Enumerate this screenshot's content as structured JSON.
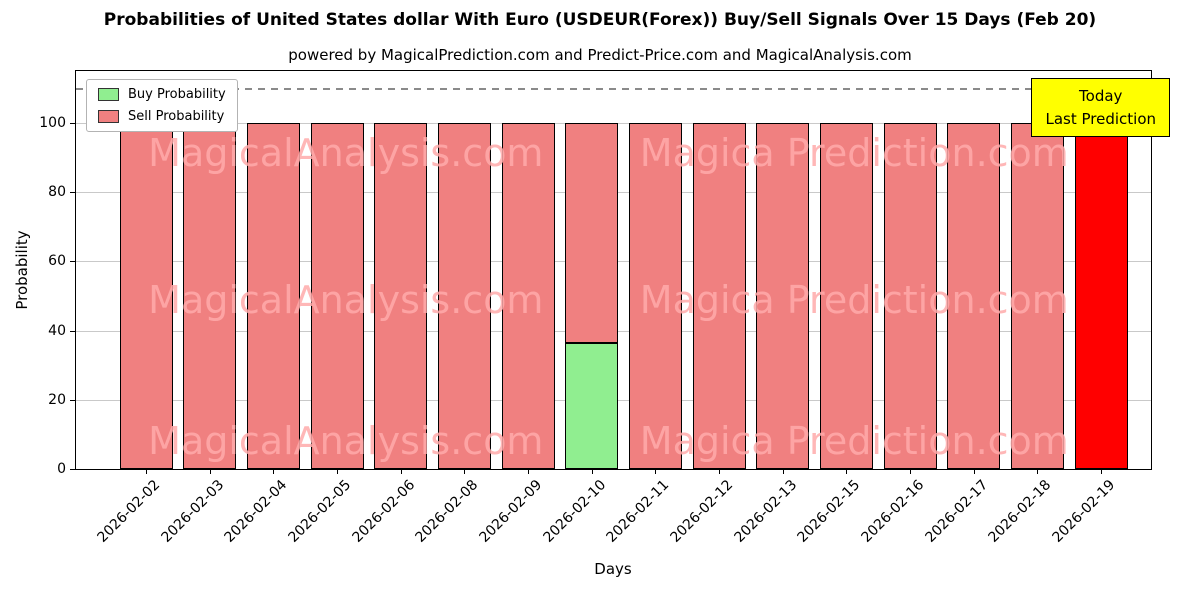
{
  "title": "Probabilities of United States dollar With Euro (USDEUR(Forex)) Buy/Sell Signals Over 15 Days (Feb 20)",
  "subtitle": "powered by MagicalPrediction.com and Predict-Price.com and MagicalAnalysis.com",
  "watermarks": {
    "left": "MagicalAnalysis.com",
    "right": "Magica Prediction.com"
  },
  "annotation": {
    "line1": "Today",
    "line2": "Last Prediction",
    "bg": "#ffff00"
  },
  "legend": [
    {
      "label": "Buy Probability",
      "color": "#90EE90"
    },
    {
      "label": "Sell Probability",
      "color": "#F08080"
    }
  ],
  "chart_data": {
    "type": "bar",
    "stacked": true,
    "title": "Probabilities of United States dollar With Euro (USDEUR(Forex)) Buy/Sell Signals Over 15 Days (Feb 20)",
    "xlabel": "Days",
    "ylabel": "Probability",
    "ylim": [
      0,
      115
    ],
    "yticks": [
      0,
      20,
      40,
      60,
      80,
      100
    ],
    "dashed_line_y": 110,
    "grid": true,
    "legend_position": "upper-left",
    "categories": [
      "2026-02-02",
      "2026-02-03",
      "2026-02-04",
      "2026-02-05",
      "2026-02-06",
      "2026-02-08",
      "2026-02-09",
      "2026-02-10",
      "2026-02-11",
      "2026-02-12",
      "2026-02-13",
      "2026-02-15",
      "2026-02-16",
      "2026-02-17",
      "2026-02-18",
      "2026-02-19"
    ],
    "series": [
      {
        "name": "Buy Probability",
        "color": "#90EE90",
        "values": [
          0,
          0,
          0,
          0,
          0,
          0,
          0,
          36.5,
          0,
          0,
          0,
          0,
          0,
          0,
          0,
          0
        ]
      },
      {
        "name": "Sell Probability",
        "color": "#F08080",
        "values": [
          100,
          100,
          100,
          100,
          100,
          100,
          100,
          63.5,
          100,
          100,
          100,
          100,
          100,
          100,
          100,
          0
        ]
      },
      {
        "name": "Today Last Prediction",
        "color": "#FF0000",
        "values": [
          0,
          0,
          0,
          0,
          0,
          0,
          0,
          0,
          0,
          0,
          0,
          0,
          0,
          0,
          0,
          100
        ]
      }
    ]
  }
}
